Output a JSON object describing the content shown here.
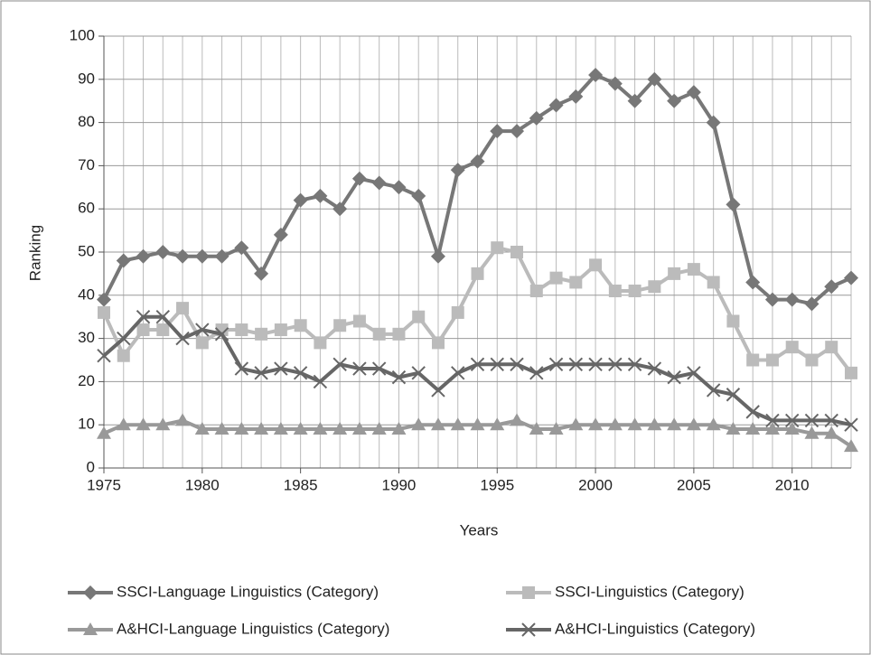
{
  "chart_data": {
    "type": "line",
    "xlabel": "Years",
    "ylabel": "Ranking",
    "x": [
      1975,
      1976,
      1977,
      1978,
      1979,
      1980,
      1981,
      1982,
      1983,
      1984,
      1985,
      1986,
      1987,
      1988,
      1989,
      1990,
      1991,
      1992,
      1993,
      1994,
      1995,
      1996,
      1997,
      1998,
      1999,
      2000,
      2001,
      2002,
      2003,
      2004,
      2005,
      2006,
      2007,
      2008,
      2009,
      2010,
      2011,
      2012,
      2013
    ],
    "xlim": [
      1975,
      2013
    ],
    "xticks": [
      1975,
      1980,
      1985,
      1990,
      1995,
      2000,
      2005,
      2010
    ],
    "ylim": [
      0,
      100
    ],
    "yticks": [
      0,
      10,
      20,
      30,
      40,
      50,
      60,
      70,
      80,
      90,
      100
    ],
    "grid": true,
    "legend": "bottom",
    "series": [
      {
        "name": "SSCI-Language Linguistics (Category)",
        "color": "#777777",
        "marker": "diamond",
        "values": [
          39,
          48,
          49,
          50,
          49,
          49,
          49,
          51,
          45,
          54,
          62,
          63,
          60,
          67,
          66,
          65,
          63,
          49,
          69,
          71,
          78,
          78,
          81,
          84,
          86,
          91,
          89,
          85,
          90,
          85,
          87,
          80,
          61,
          43,
          39,
          39,
          38,
          42,
          44
        ]
      },
      {
        "name": "SSCI-Linguistics (Category)",
        "color": "#bbbbbb",
        "marker": "square",
        "values": [
          36,
          26,
          32,
          32,
          37,
          29,
          32,
          32,
          31,
          32,
          33,
          29,
          33,
          34,
          31,
          31,
          35,
          29,
          36,
          45,
          51,
          50,
          41,
          44,
          43,
          47,
          41,
          41,
          42,
          45,
          46,
          43,
          34,
          25,
          25,
          28,
          25,
          28,
          22
        ]
      },
      {
        "name": "A&HCI-Language Linguistics (Category)",
        "color": "#999999",
        "marker": "triangle",
        "values": [
          8,
          10,
          10,
          10,
          11,
          9,
          9,
          9,
          9,
          9,
          9,
          9,
          9,
          9,
          9,
          9,
          10,
          10,
          10,
          10,
          10,
          11,
          9,
          9,
          10,
          10,
          10,
          10,
          10,
          10,
          10,
          10,
          9,
          9,
          9,
          9,
          8,
          8,
          5
        ]
      },
      {
        "name": "A&HCI-Linguistics (Category)",
        "color": "#666666",
        "marker": "x",
        "values": [
          26,
          30,
          35,
          35,
          30,
          32,
          31,
          23,
          22,
          23,
          22,
          20,
          24,
          23,
          23,
          21,
          22,
          18,
          22,
          24,
          24,
          24,
          22,
          24,
          24,
          24,
          24,
          24,
          23,
          21,
          22,
          18,
          17,
          13,
          11,
          11,
          11,
          11,
          10
        ]
      }
    ]
  }
}
